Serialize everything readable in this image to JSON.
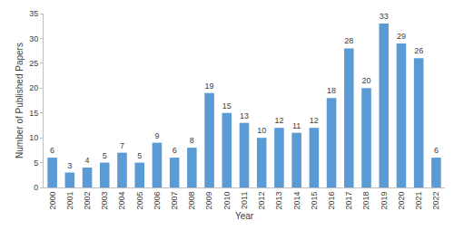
{
  "chart_data": {
    "type": "bar",
    "x_label": "Year",
    "y_label": "Number of Published Papers",
    "categories": [
      "2000",
      "2001",
      "2002",
      "2003",
      "2004",
      "2005",
      "2006",
      "2007",
      "2008",
      "2009",
      "2010",
      "2011",
      "2012",
      "2013",
      "2014",
      "2015",
      "2016",
      "2017",
      "2018",
      "2019",
      "2020",
      "2021",
      "2022"
    ],
    "values": [
      6,
      3,
      4,
      5,
      7,
      5,
      9,
      6,
      8,
      19,
      15,
      13,
      10,
      12,
      11,
      12,
      18,
      28,
      20,
      33,
      29,
      26,
      6
    ],
    "color": "#5b9bd5",
    "ylim": [
      0,
      35
    ],
    "yticks": [
      0,
      5,
      10,
      15,
      20,
      25,
      30,
      35
    ],
    "grid": false,
    "data_labels": true
  }
}
